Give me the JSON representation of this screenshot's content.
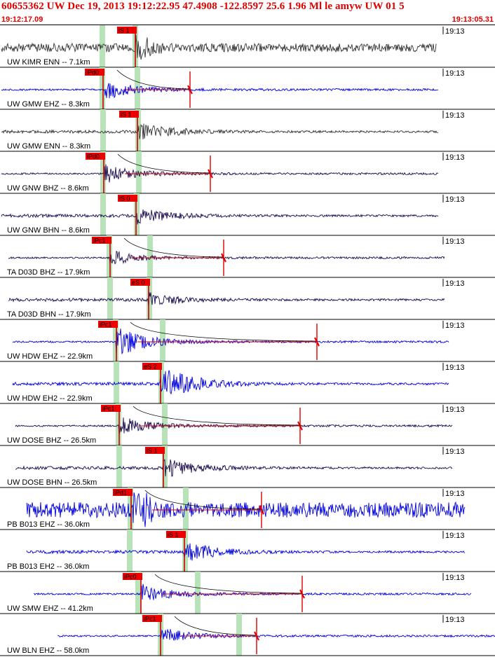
{
  "header": {
    "title": "60655362 UW Dec 19, 2013 19:12:22.95    47.4908 -122.8597 25.6 1.96 Ml le amyw UW 01    5",
    "start_time": "19:12:17.09",
    "end_time": "19:13:05.31"
  },
  "colors": {
    "header_text": "#e00000",
    "pick_box": "#ee0000",
    "pick_line": "#cc0000",
    "theoretical_band": "#b8e2b8",
    "trace_blue": "#0000dd",
    "trace_navy": "#1a0a50",
    "trace_gray": "#333333",
    "coda_red": "#dd0000",
    "decay_curve": "#000000"
  },
  "traces": [
    {
      "label": "UW KIMR ENN -- 7.1km",
      "time": "19:13",
      "pick": "iS 1",
      "color": "gray",
      "amp": 7,
      "style": "noise"
    },
    {
      "label": "UW GMW EHZ -- 8.3km",
      "time": "19:13",
      "pick": "iPd0",
      "color": "blue",
      "amp": 15,
      "style": "p"
    },
    {
      "label": "UW GMW ENN -- 8.3km",
      "time": "19:13",
      "pick": "iS 1",
      "color": "gray",
      "amp": 14,
      "style": "s"
    },
    {
      "label": "UW GNW BHZ -- 8.6km",
      "time": "19:13",
      "pick": "iPd0",
      "color": "navy",
      "amp": 14,
      "style": "p"
    },
    {
      "label": "UW GNW BHN -- 8.6km",
      "time": "19:13",
      "pick": "iS 0",
      "color": "navy",
      "amp": 12,
      "style": "s"
    },
    {
      "label": "TA D03D BHZ -- 17.9km",
      "time": "19:13",
      "pick": "iPc1",
      "color": "navy",
      "amp": 10,
      "style": "p"
    },
    {
      "label": "TA D03D BHN -- 17.9km",
      "time": "19:13",
      "pick": "eS 0",
      "color": "navy",
      "amp": 10,
      "style": "s"
    },
    {
      "label": "UW HDW EHZ -- 22.9km",
      "time": "19:13",
      "pick": "iPc1",
      "color": "blue",
      "amp": 22,
      "style": "p"
    },
    {
      "label": "UW HDW EH2 -- 22.9km",
      "time": "19:13",
      "pick": "eS 2",
      "color": "blue",
      "amp": 26,
      "style": "s"
    },
    {
      "label": "UW DOSE BHZ -- 26.5km",
      "time": "19:13",
      "pick": "iPc1",
      "color": "navy",
      "amp": 14,
      "style": "p"
    },
    {
      "label": "UW DOSE BHN -- 26.5km",
      "time": "19:13",
      "pick": "iS 1",
      "color": "navy",
      "amp": 14,
      "style": "s"
    },
    {
      "label": "PB B013 EHZ -- 36.0km",
      "time": "19:13",
      "pick": "iPd1",
      "color": "blue",
      "amp": 16,
      "style": "pnoisy"
    },
    {
      "label": "PB B013 EH2 -- 36.0km",
      "time": "19:13",
      "pick": "iS 1",
      "color": "blue",
      "amp": 14,
      "style": "s"
    },
    {
      "label": "UW SMW EHZ -- 41.2km",
      "time": "19:13",
      "pick": "iPc0",
      "color": "blue",
      "amp": 14,
      "style": "p"
    },
    {
      "label": "UW BLN EHZ -- 58.0km",
      "time": "19:13",
      "pick": "iPc1",
      "color": "blue",
      "amp": 12,
      "style": "p"
    }
  ]
}
